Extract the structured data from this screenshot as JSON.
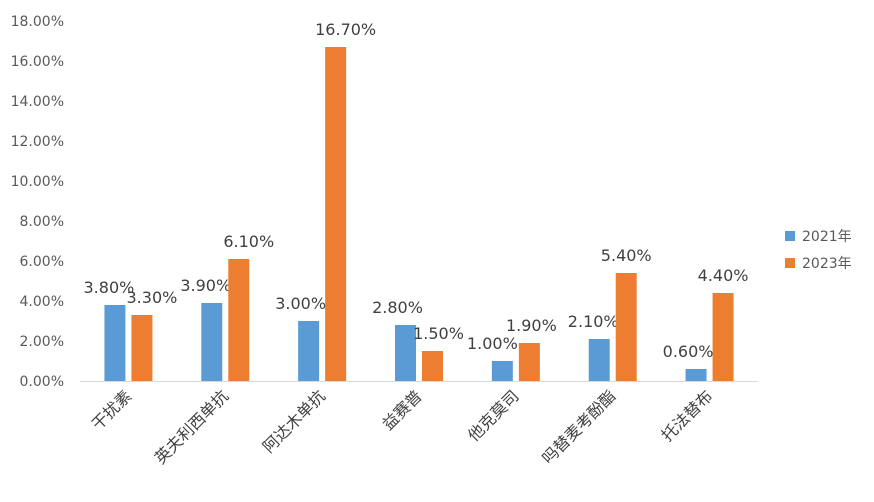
{
  "chart_data": {
    "type": "bar",
    "title": "",
    "xlabel": "",
    "ylabel": "",
    "ylim": [
      0,
      18
    ],
    "y_tick_labels": [
      "0.00%",
      "2.00%",
      "4.00%",
      "6.00%",
      "8.00%",
      "10.00%",
      "12.00%",
      "14.00%",
      "16.00%",
      "18.00%"
    ],
    "categories": [
      "干扰素",
      "英夫利西单抗",
      "阿达木单抗",
      "益赛普",
      "他克莫司",
      "吗替麦考酚酯",
      "托法替布"
    ],
    "series": [
      {
        "name": "2021年",
        "color": "#5B9BD5",
        "values": [
          3.8,
          3.9,
          3.0,
          2.8,
          1.0,
          2.1,
          0.6
        ],
        "labels": [
          "3.80%",
          "3.90%",
          "3.00%",
          "2.80%",
          "1.00%",
          "2.10%",
          "0.60%"
        ]
      },
      {
        "name": "2023年",
        "color": "#ED7D31",
        "values": [
          3.3,
          6.1,
          16.7,
          1.5,
          1.9,
          5.4,
          4.4
        ],
        "labels": [
          "3.30%",
          "6.10%",
          "16.70%",
          "1.50%",
          "1.90%",
          "5.40%",
          "4.40%"
        ]
      }
    ],
    "grid": false,
    "legend_position": "right"
  }
}
